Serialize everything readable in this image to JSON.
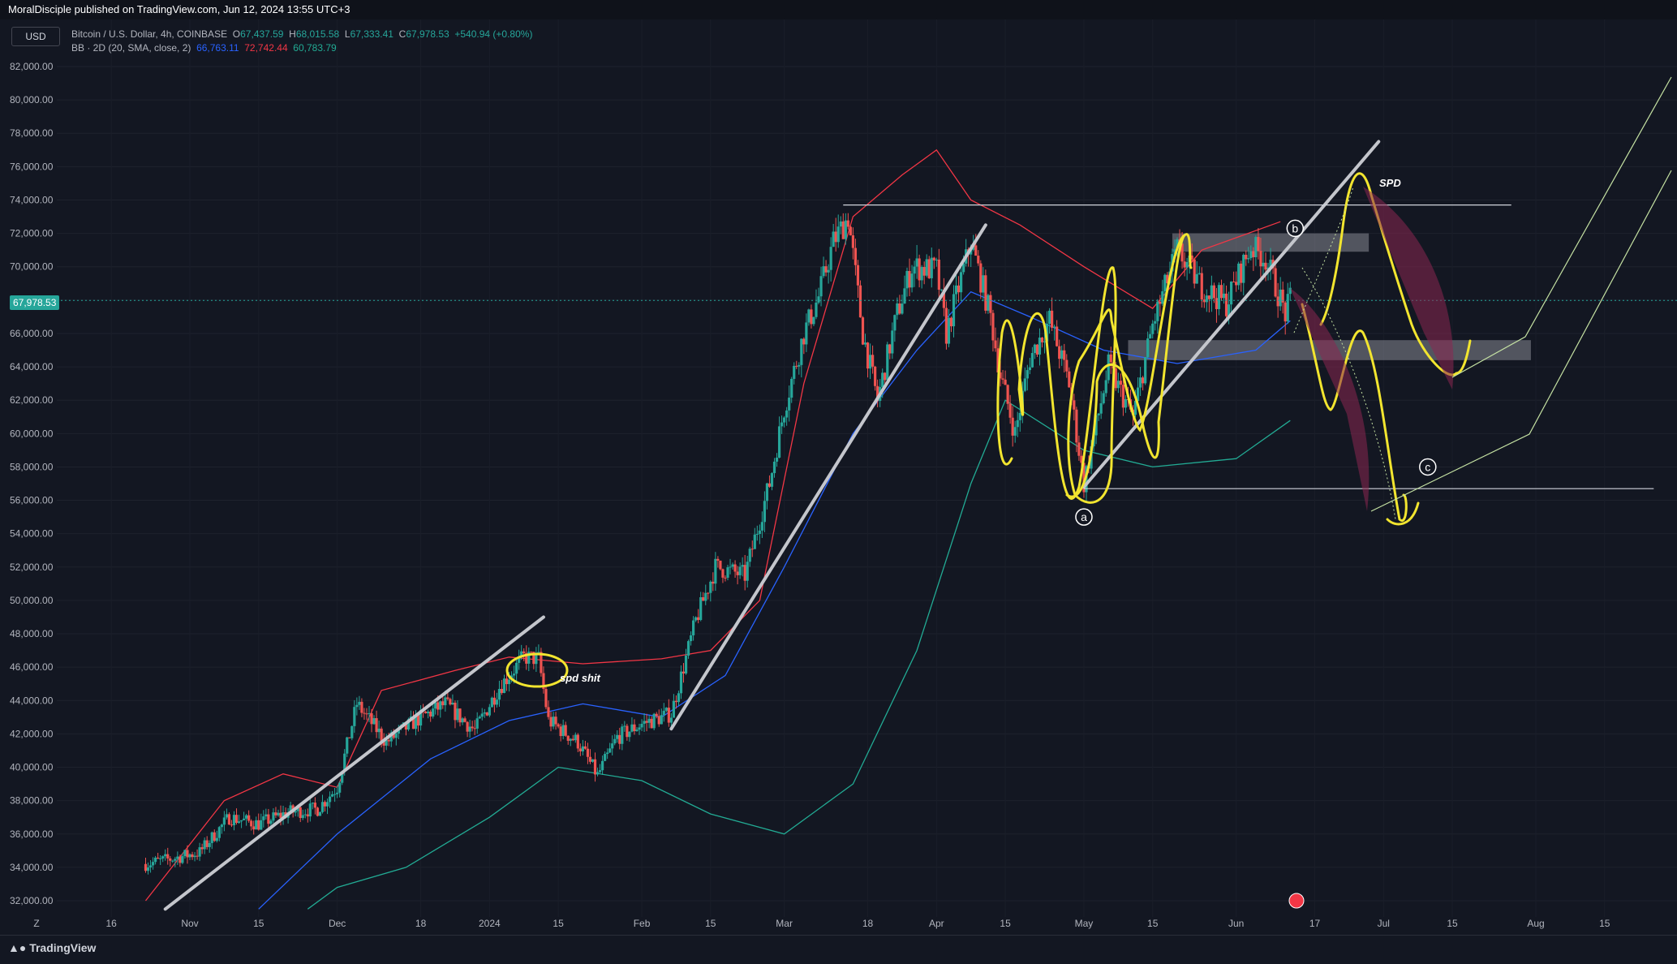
{
  "header": {
    "published": "MoralDisciple published on TradingView.com, Jun 12, 2024 13:55 UTC+3"
  },
  "currency": "USD",
  "legend": {
    "symbol": "Bitcoin / U.S. Dollar, 4h, COINBASE",
    "o_label": "O",
    "o": "67,437.59",
    "h_label": "H",
    "h": "68,015.58",
    "l_label": "L",
    "l": "67,333.41",
    "c_label": "C",
    "c": "67,978.53",
    "change": "+540.94 (+0.80%)",
    "bb_label": "BB · 2D (20, SMA, close, 2)",
    "bb_basis": "66,763.11",
    "bb_upper": "72,742.44",
    "bb_lower": "60,783.79"
  },
  "current_price": "67,978.53",
  "footer": {
    "brand": "TradingView"
  },
  "annotations": {
    "spd_shit": "spd shit",
    "spd": "SPD",
    "a": "a",
    "b": "b",
    "c": "c"
  },
  "colors": {
    "background": "#131722",
    "up_candle": "#26a69a",
    "down_candle": "#ef5350",
    "bb_basis": "#2962ff",
    "bb_upper": "#f23645",
    "bb_lower": "#22ab94",
    "trendline": "#b2b5be",
    "highlight": "#f2e52f",
    "projection": "#8b2650"
  },
  "chart_data": {
    "type": "candlestick",
    "symbol": "BTCUSD",
    "exchange": "COINBASE",
    "timeframe": "4h",
    "x_ticks": [
      "16",
      "Nov",
      "15",
      "Dec",
      "18",
      "2024",
      "15",
      "Feb",
      "15",
      "Mar",
      "18",
      "Apr",
      "15",
      "May",
      "15",
      "Jun",
      "17",
      "Jul",
      "15",
      "Aug",
      "15"
    ],
    "x_tick_dates": [
      "2023-10-16",
      "2023-11-01",
      "2023-11-15",
      "2023-12-01",
      "2023-12-18",
      "2024-01-01",
      "2024-01-15",
      "2024-02-01",
      "2024-02-15",
      "2024-03-01",
      "2024-03-18",
      "2024-04-01",
      "2024-04-15",
      "2024-05-01",
      "2024-05-15",
      "2024-06-01",
      "2024-06-17",
      "2024-07-01",
      "2024-07-15",
      "2024-08-01",
      "2024-08-15"
    ],
    "y_ticks": [
      32000,
      34000,
      36000,
      38000,
      40000,
      42000,
      44000,
      46000,
      48000,
      50000,
      52000,
      54000,
      56000,
      58000,
      60000,
      62000,
      64000,
      66000,
      68000,
      70000,
      72000,
      74000,
      76000,
      78000,
      80000,
      82000
    ],
    "y_tick_labels": [
      "32,000.00",
      "34,000.00",
      "36,000.00",
      "38,000.00",
      "40,000.00",
      "42,000.00",
      "44,000.00",
      "46,000.00",
      "48,000.00",
      "50,000.00",
      "52,000.00",
      "54,000.00",
      "56,000.00",
      "58,000.00",
      "60,000.00",
      "62,000.00",
      "64,000.00",
      "66,000.00",
      "68,000.00",
      "70,000.00",
      "72,000.00",
      "74,000.00",
      "76,000.00",
      "78,000.00",
      "80,000.00",
      "82,000.00"
    ],
    "ylim": [
      31000,
      83000
    ],
    "price_path": [
      [
        "2023-10-23",
        34200
      ],
      [
        "2023-10-28",
        34500
      ],
      [
        "2023-11-03",
        34900
      ],
      [
        "2023-11-09",
        37000
      ],
      [
        "2023-11-15",
        36600
      ],
      [
        "2023-11-21",
        37300
      ],
      [
        "2023-11-27",
        37500
      ],
      [
        "2023-12-01",
        38800
      ],
      [
        "2023-12-05",
        43800
      ],
      [
        "2023-12-11",
        41500
      ],
      [
        "2023-12-17",
        42800
      ],
      [
        "2023-12-23",
        43800
      ],
      [
        "2023-12-29",
        42200
      ],
      [
        "2024-01-03",
        44800
      ],
      [
        "2024-01-08",
        46600
      ],
      [
        "2024-01-11",
        46500
      ],
      [
        "2024-01-13",
        42800
      ],
      [
        "2024-01-19",
        41500
      ],
      [
        "2024-01-23",
        39500
      ],
      [
        "2024-01-27",
        41800
      ],
      [
        "2024-02-01",
        42600
      ],
      [
        "2024-02-07",
        43200
      ],
      [
        "2024-02-12",
        48800
      ],
      [
        "2024-02-16",
        52000
      ],
      [
        "2024-02-22",
        51500
      ],
      [
        "2024-02-27",
        57000
      ],
      [
        "2024-03-01",
        61500
      ],
      [
        "2024-03-05",
        66000
      ],
      [
        "2024-03-08",
        68200
      ],
      [
        "2024-03-11",
        71500
      ],
      [
        "2024-03-14",
        73000
      ],
      [
        "2024-03-17",
        66000
      ],
      [
        "2024-03-20",
        62000
      ],
      [
        "2024-03-24",
        67200
      ],
      [
        "2024-03-27",
        70000
      ],
      [
        "2024-04-01",
        69800
      ],
      [
        "2024-04-03",
        66000
      ],
      [
        "2024-04-08",
        71500
      ],
      [
        "2024-04-12",
        67000
      ],
      [
        "2024-04-14",
        63500
      ],
      [
        "2024-04-17",
        60000
      ],
      [
        "2024-04-20",
        64500
      ],
      [
        "2024-04-24",
        66800
      ],
      [
        "2024-04-28",
        63000
      ],
      [
        "2024-05-01",
        57000
      ],
      [
        "2024-05-06",
        64000
      ],
      [
        "2024-05-11",
        61000
      ],
      [
        "2024-05-15",
        66500
      ],
      [
        "2024-05-20",
        71000
      ],
      [
        "2024-05-25",
        68800
      ],
      [
        "2024-05-30",
        67800
      ],
      [
        "2024-06-04",
        71200
      ],
      [
        "2024-06-07",
        70500
      ],
      [
        "2024-06-11",
        67200
      ],
      [
        "2024-06-12",
        67978.53
      ]
    ],
    "bb_upper_path": [
      [
        "2023-10-23",
        32000
      ],
      [
        "2023-11-08",
        38000
      ],
      [
        "2023-11-20",
        39600
      ],
      [
        "2023-12-01",
        38800
      ],
      [
        "2023-12-10",
        44600
      ],
      [
        "2023-12-25",
        45800
      ],
      [
        "2024-01-05",
        46600
      ],
      [
        "2024-01-20",
        46200
      ],
      [
        "2024-02-05",
        46500
      ],
      [
        "2024-02-15",
        47000
      ],
      [
        "2024-02-25",
        50000
      ],
      [
        "2024-03-05",
        63000
      ],
      [
        "2024-03-15",
        73000
      ],
      [
        "2024-03-25",
        75500
      ],
      [
        "2024-04-01",
        77000
      ],
      [
        "2024-04-08",
        74000
      ],
      [
        "2024-04-18",
        72500
      ],
      [
        "2024-05-01",
        70000
      ],
      [
        "2024-05-15",
        67500
      ],
      [
        "2024-05-25",
        71000
      ],
      [
        "2024-06-10",
        72700
      ]
    ],
    "bb_basis_path": [
      [
        "2023-11-15",
        31500
      ],
      [
        "2023-12-01",
        36000
      ],
      [
        "2023-12-20",
        40500
      ],
      [
        "2024-01-05",
        42800
      ],
      [
        "2024-01-20",
        43800
      ],
      [
        "2024-02-05",
        43000
      ],
      [
        "2024-02-18",
        45500
      ],
      [
        "2024-03-01",
        52000
      ],
      [
        "2024-03-15",
        60000
      ],
      [
        "2024-03-28",
        65000
      ],
      [
        "2024-04-08",
        68500
      ],
      [
        "2024-04-20",
        67000
      ],
      [
        "2024-05-05",
        65000
      ],
      [
        "2024-05-20",
        64200
      ],
      [
        "2024-06-05",
        65000
      ],
      [
        "2024-06-12",
        66763
      ]
    ],
    "bb_lower_path": [
      [
        "2023-11-25",
        31500
      ],
      [
        "2023-12-01",
        32800
      ],
      [
        "2023-12-15",
        34000
      ],
      [
        "2024-01-01",
        37000
      ],
      [
        "2024-01-15",
        40000
      ],
      [
        "2024-02-01",
        39200
      ],
      [
        "2024-02-15",
        37200
      ],
      [
        "2024-03-01",
        36000
      ],
      [
        "2024-03-15",
        39000
      ],
      [
        "2024-03-28",
        47000
      ],
      [
        "2024-04-08",
        57000
      ],
      [
        "2024-04-15",
        62000
      ],
      [
        "2024-05-01",
        59000
      ],
      [
        "2024-05-15",
        58000
      ],
      [
        "2024-06-01",
        58500
      ],
      [
        "2024-06-12",
        60784
      ]
    ],
    "trendlines": [
      {
        "from": [
          "2023-10-27",
          31500
        ],
        "to": [
          "2024-01-12",
          49000
        ]
      },
      {
        "from": [
          "2024-02-07",
          42300
        ],
        "to": [
          "2024-04-11",
          72500
        ]
      },
      {
        "from": [
          "2024-05-01",
          56800
        ],
        "to": [
          "2024-06-30",
          77500
        ]
      }
    ],
    "horizontal_levels": [
      {
        "price": 73700,
        "from": "2024-03-13",
        "to": "2024-07-27"
      },
      {
        "price": 56700,
        "from": "2024-05-01",
        "to": "2024-08-25"
      }
    ],
    "zones": [
      {
        "from": "2024-05-19",
        "to": "2024-06-28",
        "low": 70900,
        "high": 72000
      },
      {
        "from": "2024-05-10",
        "to": "2024-07-31",
        "low": 64400,
        "high": 65600
      }
    ],
    "wave_labels": [
      {
        "text": "a",
        "date": "2024-05-01",
        "price": 55000
      },
      {
        "text": "b",
        "date": "2024-06-13",
        "price": 72300
      },
      {
        "text": "c",
        "date": "2024-07-10",
        "price": 58000
      }
    ],
    "current_price": 67978.53
  }
}
